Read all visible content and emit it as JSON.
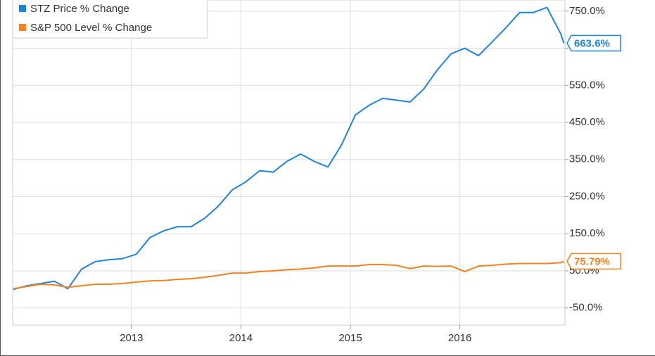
{
  "chart_data": {
    "type": "line",
    "x": [
      2011.92,
      2012.045,
      2012.17,
      2012.295,
      2012.42,
      2012.545,
      2012.67,
      2012.795,
      2012.92,
      2013.045,
      2013.17,
      2013.295,
      2013.42,
      2013.545,
      2013.67,
      2013.795,
      2013.92,
      2014.045,
      2014.17,
      2014.295,
      2014.42,
      2014.545,
      2014.67,
      2014.795,
      2014.92,
      2015.045,
      2015.17,
      2015.295,
      2015.42,
      2015.545,
      2015.67,
      2015.795,
      2015.92,
      2016.045,
      2016.17,
      2016.295,
      2016.42,
      2016.545,
      2016.67,
      2016.795,
      2016.92,
      2016.95
    ],
    "series": [
      {
        "name": "STZ Price % Change",
        "color": "#1f84e0",
        "values": [
          0,
          10,
          16,
          22,
          2,
          55,
          75,
          80,
          83,
          95,
          140,
          158,
          169,
          169,
          192,
          225,
          268,
          290,
          320,
          316,
          345,
          365,
          345,
          330,
          390,
          470,
          496,
          515,
          510,
          505,
          540,
          592,
          635,
          650,
          630,
          667,
          705,
          746,
          746,
          760,
          690,
          663.6
        ],
        "value_labels": [
          null,
          null,
          null,
          null,
          null,
          null,
          null,
          null,
          null,
          null,
          null,
          null,
          null,
          null,
          null,
          null,
          null,
          null,
          null,
          null,
          null,
          null,
          null,
          null,
          null,
          null,
          null,
          null,
          null,
          null,
          null,
          null,
          null,
          null,
          null,
          null,
          null,
          null,
          null,
          null,
          null,
          "663.6%"
        ]
      },
      {
        "name": "S&P 500 Level % Change",
        "color": "#f5821f",
        "values": [
          2,
          8,
          14,
          12,
          6,
          10,
          14,
          14,
          16,
          20,
          23,
          24,
          27,
          29,
          33,
          38,
          44,
          44,
          48,
          50,
          53,
          55,
          58,
          63,
          63,
          63,
          67,
          67,
          65,
          56,
          63,
          62,
          63,
          48,
          63,
          65,
          68,
          70,
          70,
          70,
          72,
          75.79
        ],
        "value_labels": [
          null,
          null,
          null,
          null,
          null,
          null,
          null,
          null,
          null,
          null,
          null,
          null,
          null,
          null,
          null,
          null,
          null,
          null,
          null,
          null,
          null,
          null,
          null,
          null,
          null,
          null,
          null,
          null,
          null,
          null,
          null,
          null,
          null,
          null,
          null,
          null,
          null,
          null,
          null,
          null,
          null,
          "75.79%"
        ]
      }
    ],
    "xlim": [
      2011.915,
      2016.96
    ],
    "xticks": [
      2013,
      2014,
      2015,
      2016
    ],
    "ylim": [
      -96,
      780
    ],
    "yticks": [
      {
        "value": -50,
        "label": "-50.0%"
      },
      {
        "value": 50,
        "label": "50.0%"
      },
      {
        "value": 150,
        "label": "150.0%"
      },
      {
        "value": 250,
        "label": "250.0%"
      },
      {
        "value": 350,
        "label": "350.0%"
      },
      {
        "value": 450,
        "label": "450.0%"
      },
      {
        "value": 550,
        "label": "550.0%"
      },
      {
        "value": 650,
        "label": "650.0%"
      },
      {
        "value": 750,
        "label": "750.0%"
      }
    ],
    "grid": true
  }
}
